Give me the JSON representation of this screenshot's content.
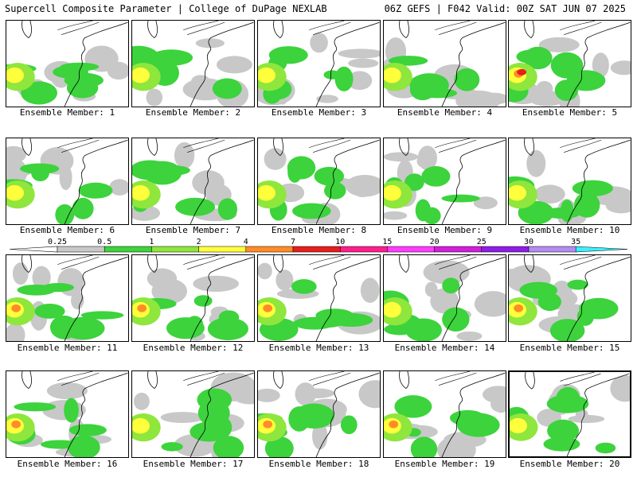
{
  "header": {
    "title_left": "Supercell Composite Parameter | College of DuPage NEXLAB",
    "title_right": "06Z GEFS | F042 Valid: 00Z SAT JUN 07 2025"
  },
  "colorbar": {
    "ticks": [
      "0.25",
      "0.5",
      "1",
      "2",
      "4",
      "7",
      "10",
      "15",
      "20",
      "25",
      "30",
      "35"
    ],
    "colors": [
      "#c8c8c8",
      "#3cd33c",
      "#8fe63c",
      "#ffff3c",
      "#ff8c28",
      "#e61e1e",
      "#ff1e8c",
      "#ff3cff",
      "#d21edc",
      "#8c1ee6",
      "#b48cf0",
      "#3cf0ff"
    ]
  },
  "panels": [
    {
      "caption": "Ensemble Member: 1"
    },
    {
      "caption": "Ensemble Member: 2"
    },
    {
      "caption": "Ensemble Member: 3"
    },
    {
      "caption": "Ensemble Member: 4"
    },
    {
      "caption": "Ensemble Member: 5"
    },
    {
      "caption": "Ensemble Member: 6"
    },
    {
      "caption": "Ensemble Member: 7"
    },
    {
      "caption": "Ensemble Member: 8"
    },
    {
      "caption": "Ensemble Member: 9"
    },
    {
      "caption": "Ensemble Member: 10"
    },
    {
      "caption": "Ensemble Member: 11"
    },
    {
      "caption": "Ensemble Member: 12"
    },
    {
      "caption": "Ensemble Member: 13"
    },
    {
      "caption": "Ensemble Member: 14"
    },
    {
      "caption": "Ensemble Member: 15"
    },
    {
      "caption": "Ensemble Member: 16"
    },
    {
      "caption": "Ensemble Member: 17"
    },
    {
      "caption": "Ensemble Member: 18"
    },
    {
      "caption": "Ensemble Member: 19"
    },
    {
      "caption": "Ensemble Member: 20"
    }
  ]
}
